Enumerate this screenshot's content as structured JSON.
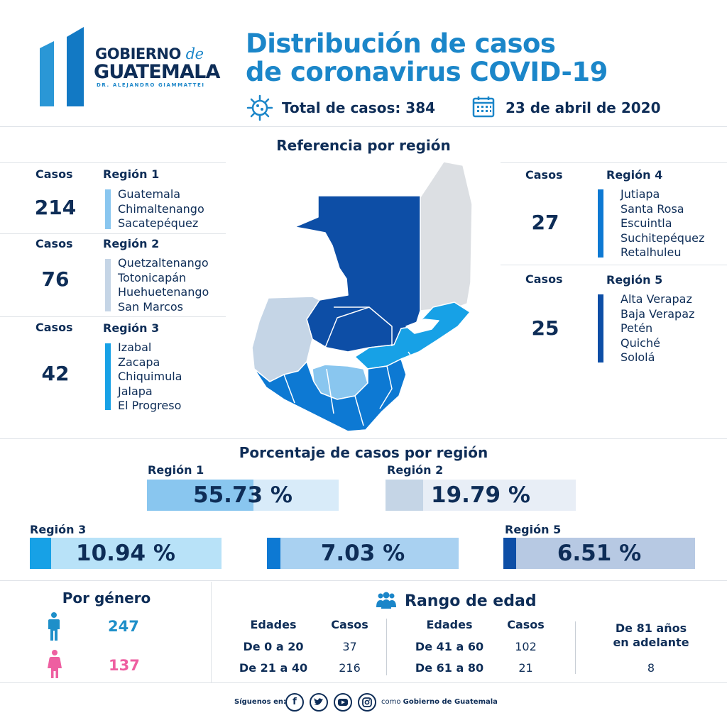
{
  "logo": {
    "line1": "GOBIERNO",
    "line1_script": "de",
    "line2": "GUATEMALA",
    "line3": "DR. ALEJANDRO GIAMMATTEI"
  },
  "title": {
    "line1": "Distribución de casos",
    "line2": "de coronavirus COVID-19"
  },
  "meta": {
    "total_label": "Total de casos: 384",
    "date_label": "23 de abril de 2020"
  },
  "colors": {
    "region1": "#89c6ef",
    "region2": "#c5d5e6",
    "region3": "#17a1e6",
    "region4": "#0d79d3",
    "region5": "#0d4ea6",
    "male": "#1e8fc9",
    "female": "#ee5fa1"
  },
  "map": {
    "title": "Referencia por región"
  },
  "regions": [
    {
      "casos_label": "Casos",
      "name": "Región 1",
      "cases": "214",
      "departments": [
        "Guatemala",
        "Chimaltenango",
        "Sacatepéquez"
      ]
    },
    {
      "casos_label": "Casos",
      "name": "Región 2",
      "cases": "76",
      "departments": [
        "Quetzaltenango",
        "Totonicapán",
        "Huehuetenango",
        "San Marcos"
      ]
    },
    {
      "casos_label": "Casos",
      "name": "Región 3",
      "cases": "42",
      "departments": [
        "Izabal",
        "Zacapa",
        "Chiquimula",
        "Jalapa",
        "El Progreso"
      ]
    },
    {
      "casos_label": "Casos",
      "name": "Región 4",
      "cases": "27",
      "departments": [
        "Jutiapa",
        "Santa Rosa",
        "Escuintla",
        "Suchitepéquez",
        "Retalhuleu"
      ]
    },
    {
      "casos_label": "Casos",
      "name": "Región 5",
      "cases": "25",
      "departments": [
        "Alta Verapaz",
        "Baja Verapaz",
        "Petén",
        "Quiché",
        "Sololá"
      ]
    }
  ],
  "percentages": {
    "title": "Porcentaje de casos por región",
    "items": [
      {
        "label": "Región 1",
        "value_label": "55.73 %",
        "value": 55.73
      },
      {
        "label": "Región 2",
        "value_label": "19.79 %",
        "value": 19.79
      },
      {
        "label": "Región 3",
        "value_label": "10.94 %",
        "value": 10.94
      },
      {
        "label": "",
        "value_label": "7.03 %",
        "value": 7.03
      },
      {
        "label": "Región 5",
        "value_label": "6.51 %",
        "value": 6.51
      }
    ]
  },
  "gender": {
    "title": "Por género",
    "male": "247",
    "female": "137"
  },
  "age": {
    "title": "Rango de edad",
    "headers": [
      "Edades",
      "Casos",
      "Edades",
      "Casos"
    ],
    "rows": [
      {
        "range": "De 0 a 20",
        "cases": "37"
      },
      {
        "range": "De 21 a 40",
        "cases": "216"
      },
      {
        "range": "De 41 a 60",
        "cases": "102"
      },
      {
        "range": "De 61 a 80",
        "cases": "21"
      }
    ],
    "over81_line1": "De 81 años",
    "over81_line2": "en adelante",
    "over81_cases": "8"
  },
  "footer": {
    "follow": "Síguenos en:",
    "como": "como",
    "name": "Gobierno de Guatemala"
  }
}
